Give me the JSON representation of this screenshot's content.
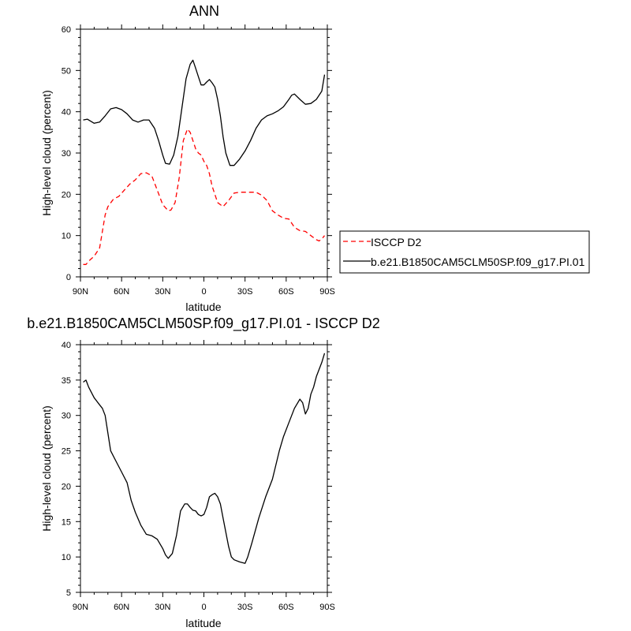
{
  "chart_data": [
    {
      "type": "line",
      "title": "ANN",
      "xlabel": "latitude",
      "ylabel": "High-level cloud (percent)",
      "xlim": [
        -90,
        90
      ],
      "ylim": [
        0,
        60
      ],
      "xticks": [
        -90,
        -60,
        -30,
        0,
        30,
        60,
        90
      ],
      "xtick_labels": [
        "90N",
        "60N",
        "30N",
        "0",
        "30S",
        "60S",
        "90S"
      ],
      "yticks": [
        0,
        10,
        20,
        30,
        40,
        50,
        60
      ],
      "ytick_labels": [
        "0",
        "10",
        "20",
        "30",
        "40",
        "50",
        "60"
      ],
      "legend_position": "right",
      "series": [
        {
          "name": "ISCCP D2",
          "color": "#ff0000",
          "dashed": true,
          "x": [
            -88,
            -86,
            -84,
            -80,
            -76,
            -72,
            -70,
            -66,
            -62,
            -58,
            -54,
            -50,
            -46,
            -42,
            -38,
            -34,
            -30,
            -26,
            -24,
            -21,
            -18,
            -15,
            -12,
            -10,
            -8,
            -6,
            -4,
            -2,
            0,
            2,
            4,
            6,
            8,
            10,
            14,
            18,
            22,
            26,
            30,
            34,
            38,
            42,
            46,
            50,
            54,
            58,
            62,
            66,
            70,
            74,
            78,
            82,
            84,
            86,
            88
          ],
          "y": [
            3,
            3,
            3.8,
            5,
            7,
            15,
            17,
            18.8,
            19.5,
            21,
            22.5,
            23.5,
            25,
            25.2,
            24.5,
            21,
            17.5,
            16,
            16.2,
            18,
            24,
            33,
            35.8,
            35,
            33,
            31,
            30,
            29.5,
            28,
            27,
            25,
            22,
            20,
            18,
            17,
            18.5,
            20.3,
            20.5,
            20.5,
            20.5,
            20.5,
            19.8,
            18.5,
            16,
            15,
            14.2,
            14,
            12,
            11.2,
            11,
            10,
            9,
            8.7,
            9.2,
            10
          ]
        },
        {
          "name": "b.e21.B1850CAM5CLM50SP.f09_g17.PI.01",
          "color": "#000000",
          "dashed": false,
          "x": [
            -88,
            -85,
            -80,
            -76,
            -72,
            -68,
            -64,
            -60,
            -56,
            -52,
            -48,
            -44,
            -40,
            -36,
            -33,
            -30,
            -28,
            -25,
            -22,
            -19,
            -16,
            -13,
            -10,
            -8,
            -6,
            -4,
            -2,
            0,
            2,
            4,
            6,
            8,
            10,
            12,
            14,
            16,
            19,
            22,
            26,
            30,
            34,
            38,
            42,
            46,
            50,
            54,
            58,
            62,
            64,
            66,
            70,
            74,
            78,
            82,
            86,
            88
          ],
          "y": [
            38,
            38.2,
            37.2,
            37.5,
            39,
            40.7,
            41,
            40.5,
            39.5,
            38,
            37.5,
            38,
            38,
            36,
            33,
            29.5,
            27.5,
            27.3,
            29.5,
            34,
            41,
            48,
            51.5,
            52.5,
            50.5,
            48.5,
            46.5,
            46.5,
            47.2,
            47.8,
            47,
            46,
            43,
            39,
            34,
            30,
            27,
            27,
            28.5,
            30.5,
            33,
            36,
            38,
            39,
            39.5,
            40.2,
            41.2,
            43,
            44,
            44.3,
            43,
            41.8,
            42,
            43,
            45,
            49
          ]
        }
      ]
    },
    {
      "type": "line",
      "title": "b.e21.B1850CAM5CLM50SP.f09_g17.PI.01 - ISCCP D2",
      "xlabel": "latitude",
      "ylabel": "High-level cloud (percent)",
      "xlim": [
        -90,
        90
      ],
      "ylim": [
        5,
        40
      ],
      "xticks": [
        -90,
        -60,
        -30,
        0,
        30,
        60,
        90
      ],
      "xtick_labels": [
        "90N",
        "60N",
        "30N",
        "0",
        "30S",
        "60S",
        "90S"
      ],
      "yticks": [
        5,
        10,
        15,
        20,
        25,
        30,
        35,
        40
      ],
      "ytick_labels": [
        "5",
        "10",
        "15",
        "20",
        "25",
        "30",
        "35",
        "40"
      ],
      "series": [
        {
          "color": "#000000",
          "dashed": false,
          "x": [
            -88,
            -86,
            -84,
            -80,
            -76,
            -74,
            -72,
            -70,
            -68,
            -64,
            -60,
            -56,
            -53,
            -50,
            -46,
            -42,
            -38,
            -34,
            -30,
            -28,
            -26,
            -23,
            -20,
            -17,
            -14,
            -12,
            -10,
            -8,
            -6,
            -4,
            -2,
            0,
            2,
            4,
            6,
            8,
            10,
            12,
            14,
            16,
            18,
            20,
            22,
            26,
            30,
            32,
            35,
            40,
            45,
            50,
            55,
            58,
            62,
            66,
            70,
            72,
            74,
            76,
            78,
            80,
            82,
            86,
            88
          ],
          "y": [
            34.7,
            35,
            34,
            32.5,
            31.5,
            31,
            30,
            27.5,
            25,
            23.5,
            22,
            20.5,
            18,
            16.3,
            14.5,
            13.2,
            13,
            12.5,
            11.2,
            10.3,
            9.8,
            10.5,
            13,
            16.5,
            17.5,
            17.5,
            17,
            16.6,
            16.5,
            16,
            15.8,
            16,
            17,
            18.5,
            18.8,
            19,
            18.5,
            17.5,
            15.5,
            13.5,
            11.5,
            10,
            9.6,
            9.3,
            9.1,
            10,
            12,
            15.5,
            18.5,
            21,
            25,
            27,
            29,
            31,
            32.3,
            31.8,
            30.2,
            31,
            33,
            34,
            35.5,
            37.5,
            38.8
          ]
        }
      ]
    }
  ]
}
